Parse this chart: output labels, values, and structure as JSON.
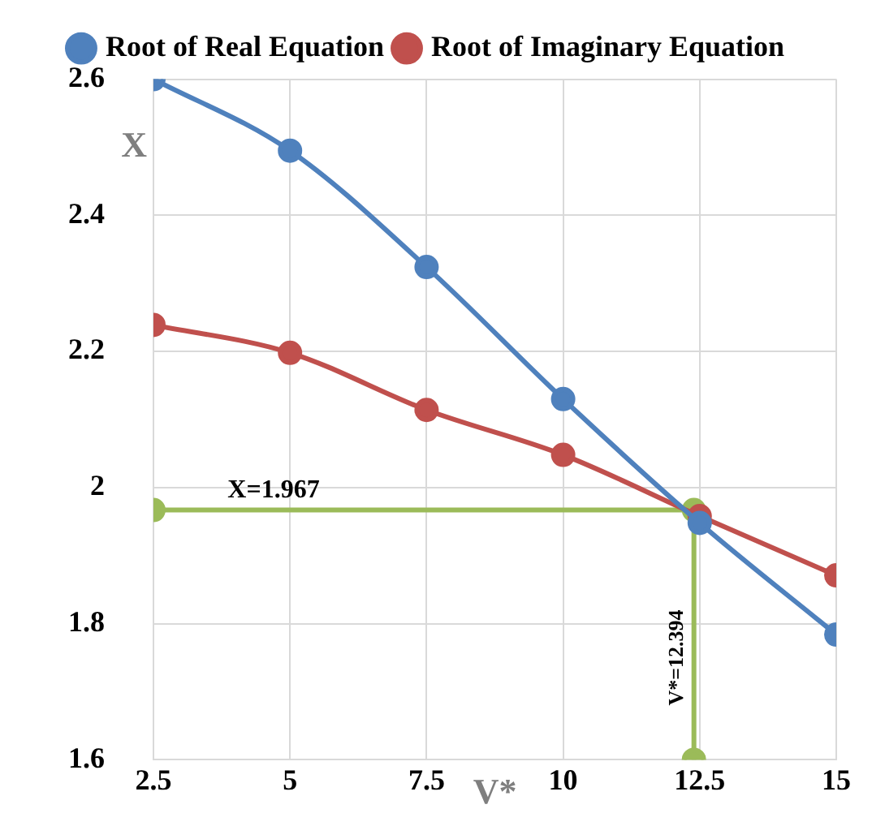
{
  "chart_data": {
    "type": "line",
    "xlabel": "V*",
    "ylabel": "X",
    "xlim": [
      2.5,
      15
    ],
    "xticks": [
      2.5,
      5,
      7.5,
      10,
      12.5,
      15
    ],
    "ylim": [
      1.6,
      2.6
    ],
    "yticks": [
      1.6,
      1.8,
      {
        "value": 2,
        "label": "2"
      },
      2.2,
      2.4,
      2.6
    ],
    "grid": true,
    "legend": "top",
    "marker": "circle",
    "series": [
      {
        "name": "Root of Real Equation",
        "color": "#4f81bd",
        "x": [
          2.5,
          5,
          7.5,
          10,
          12.5,
          15
        ],
        "values": [
          2.6,
          2.495,
          2.324,
          2.13,
          1.948,
          1.784
        ]
      },
      {
        "name": "Root of Imaginary Equation",
        "color": "#c0504d",
        "x": [
          2.5,
          5,
          7.5,
          10,
          12.5,
          15
        ],
        "values": [
          2.239,
          2.198,
          2.114,
          2.048,
          1.958,
          1.871
        ]
      },
      {
        "color": "#9bbb59",
        "x": [
          2.5,
          12.394,
          12.394
        ],
        "values": [
          1.967,
          1.967,
          1.6
        ]
      }
    ],
    "annotations": [
      {
        "text": "X=1.967",
        "x": 4.7,
        "y": 1.967
      },
      {
        "text": "V*=12.394",
        "x": 12.394,
        "y": 1.75
      }
    ]
  }
}
